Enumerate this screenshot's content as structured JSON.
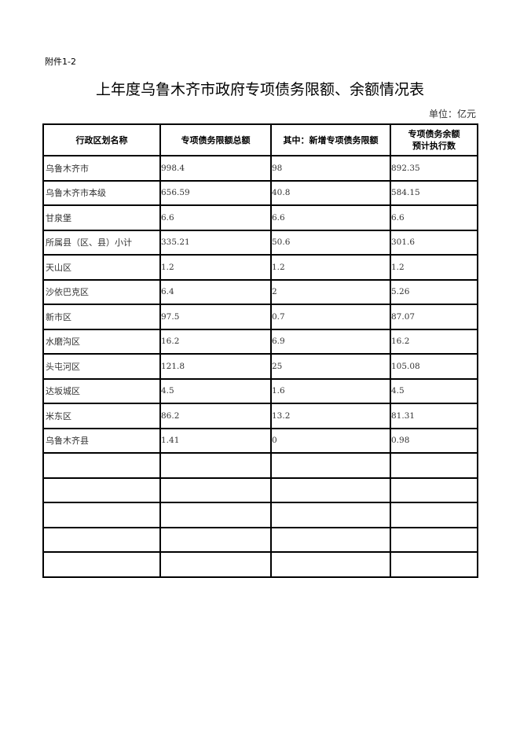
{
  "attachment_label": "附件1-2",
  "title": "上年度乌鲁木齐市政府专项债务限额、余额情况表",
  "unit": "单位：亿元",
  "table": {
    "headers": [
      "行政区划名称",
      "专项债务限额总额",
      "其中：新增专项债务限额",
      "专项债务余额\n预计执行数"
    ],
    "header_col4_line1": "专项债务余额",
    "header_col4_line2": "预计执行数",
    "rows": [
      [
        "乌鲁木齐市",
        "998.4",
        "98",
        "892.35"
      ],
      [
        "乌鲁木齐市本级",
        "656.59",
        "40.8",
        "584.15"
      ],
      [
        "甘泉堡",
        "6.6",
        "6.6",
        "6.6"
      ],
      [
        "所属县（区、县）小计",
        "335.21",
        "50.6",
        "301.6"
      ],
      [
        "天山区",
        "1.2",
        "1.2",
        "1.2"
      ],
      [
        "沙依巴克区",
        "6.4",
        "2",
        "5.26"
      ],
      [
        "新市区",
        "97.5",
        "0.7",
        "87.07"
      ],
      [
        "水磨沟区",
        "16.2",
        "6.9",
        "16.2"
      ],
      [
        "头屯河区",
        "121.8",
        "25",
        "105.08"
      ],
      [
        "达坂城区",
        "4.5",
        "1.6",
        "4.5"
      ],
      [
        "米东区",
        "86.2",
        "13.2",
        "81.31"
      ],
      [
        "乌鲁木齐县",
        "1.41",
        "0",
        "0.98"
      ],
      [
        "",
        "",
        "",
        ""
      ],
      [
        "",
        "",
        "",
        ""
      ],
      [
        "",
        "",
        "",
        ""
      ],
      [
        "",
        "",
        "",
        ""
      ],
      [
        "",
        "",
        "",
        ""
      ]
    ]
  }
}
